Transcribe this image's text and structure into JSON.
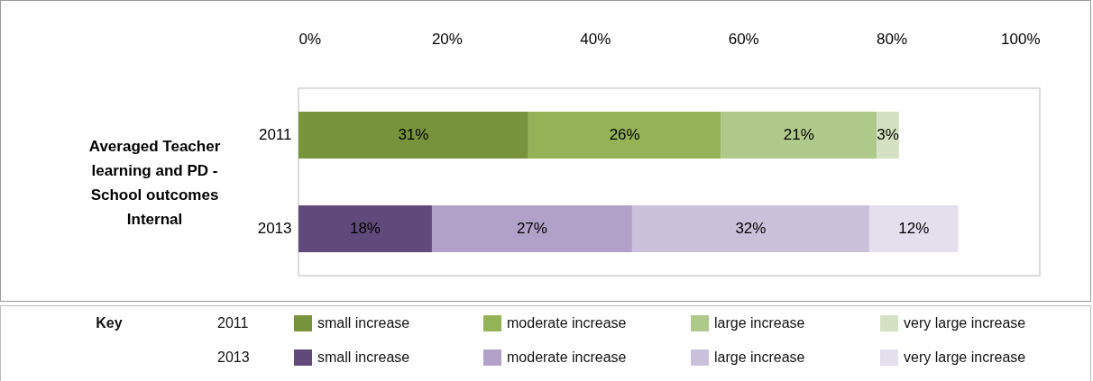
{
  "chart_data": {
    "type": "bar",
    "orientation": "horizontal",
    "stacked": true,
    "ylabel": "Averaged Teacher learning and PD - School outcomes Internal",
    "categories": [
      "2011",
      "2013"
    ],
    "series": [
      {
        "name": "small increase",
        "colors": [
          "#77933c",
          "#604a7b"
        ],
        "values": [
          31,
          18
        ],
        "value_labels": [
          "31%",
          "18%"
        ]
      },
      {
        "name": "moderate increase",
        "colors": [
          "#94b256",
          "#b1a0c7"
        ],
        "values": [
          26,
          27
        ],
        "value_labels": [
          "26%",
          "27%"
        ]
      },
      {
        "name": "large increase",
        "colors": [
          "#afc98a",
          "#cbc0da"
        ],
        "values": [
          21,
          32
        ],
        "value_labels": [
          "21%",
          "32%"
        ]
      },
      {
        "name": "very large increase",
        "colors": [
          "#d4e1c2",
          "#e4dfec"
        ],
        "values": [
          3,
          12
        ],
        "value_labels": [
          "3%",
          "12%"
        ]
      }
    ],
    "xlim": [
      0,
      100
    ],
    "xticks": [
      {
        "value": 0,
        "label": "0%"
      },
      {
        "value": 20,
        "label": "20%"
      },
      {
        "value": 40,
        "label": "40%"
      },
      {
        "value": 60,
        "label": "60%"
      },
      {
        "value": 80,
        "label": "80%"
      },
      {
        "value": 100,
        "label": "100%"
      }
    ],
    "legend": "bottom",
    "legend_title": "Key"
  }
}
